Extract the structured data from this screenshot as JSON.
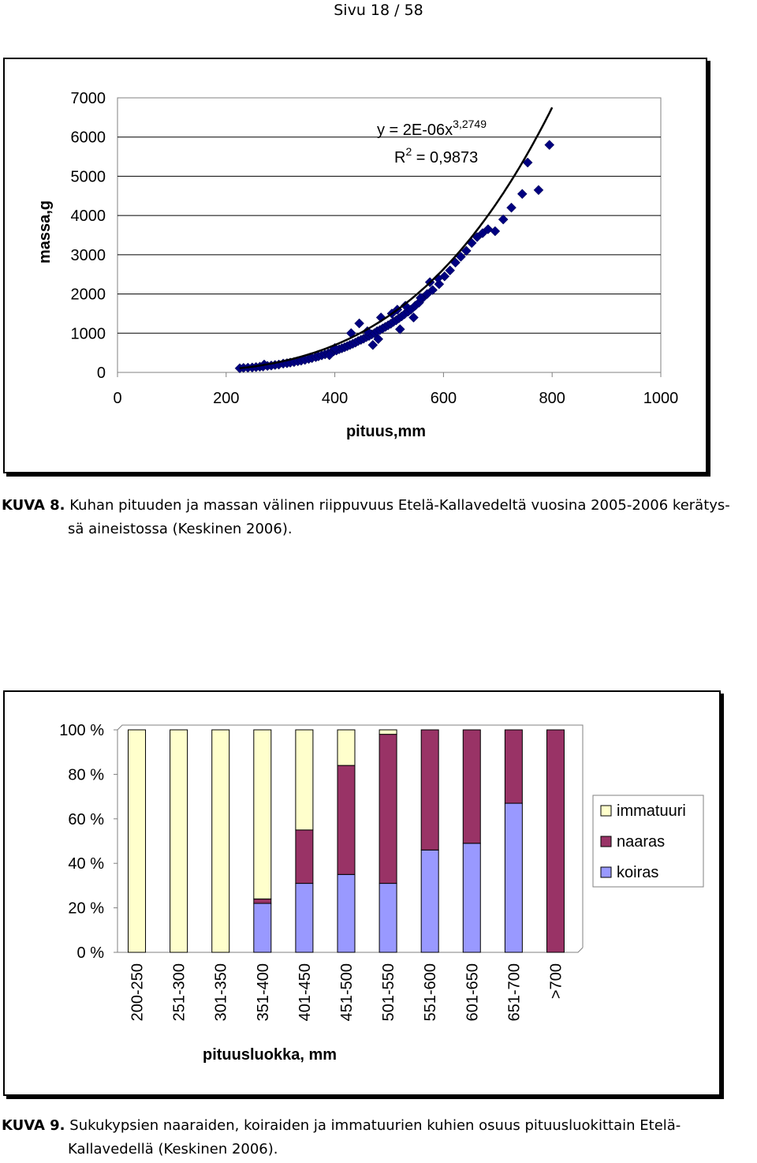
{
  "header": {
    "text": "Sivu 18 / 58"
  },
  "figure1": {
    "label": "KUVA 8.",
    "caption_line1": "Kuhan pituuden ja massan välinen riippuvuus Etelä-Kallavedeltä vuosina 2005-2006 kerätys-",
    "caption_line2": "sä aineistossa (Keskinen 2006)."
  },
  "figure2": {
    "label": "KUVA 9.",
    "caption_line1": "Sukukypsien naaraiden, koiraiden ja immatuurien kuhien osuus pituusluokittain Etelä-",
    "caption_line2": "Kallavedellä (Keskinen 2006)."
  },
  "chart_data": [
    {
      "type": "scatter",
      "xlabel": "pituus,mm",
      "ylabel": "massa,g",
      "xlim": [
        0,
        1000
      ],
      "ylim": [
        0,
        7000
      ],
      "xticks": [
        0,
        200,
        400,
        600,
        800,
        1000
      ],
      "yticks": [
        0,
        1000,
        2000,
        3000,
        4000,
        5000,
        6000,
        7000
      ],
      "gridlines": "horizontal",
      "marker_color": "#000080",
      "trendline": {
        "equation": "y = 2E-06x",
        "exponent": "3,2749",
        "r2_label": "R",
        "r2_sup": "2",
        "r2_value": " = 0,9873",
        "a": 2.1e-06,
        "b": 3.2749,
        "x_range": [
          225,
          800
        ]
      },
      "points": [
        [
          225,
          105
        ],
        [
          232,
          115
        ],
        [
          240,
          120
        ],
        [
          248,
          125
        ],
        [
          255,
          135
        ],
        [
          262,
          145
        ],
        [
          270,
          200
        ],
        [
          268,
          150
        ],
        [
          276,
          165
        ],
        [
          283,
          175
        ],
        [
          290,
          190
        ],
        [
          297,
          200
        ],
        [
          305,
          225
        ],
        [
          312,
          235
        ],
        [
          318,
          250
        ],
        [
          325,
          265
        ],
        [
          332,
          285
        ],
        [
          338,
          300
        ],
        [
          345,
          320
        ],
        [
          352,
          345
        ],
        [
          358,
          365
        ],
        [
          365,
          390
        ],
        [
          370,
          410
        ],
        [
          376,
          435
        ],
        [
          382,
          460
        ],
        [
          388,
          485
        ],
        [
          393,
          510
        ],
        [
          398,
          540
        ],
        [
          403,
          560
        ],
        [
          408,
          590
        ],
        [
          413,
          615
        ],
        [
          418,
          640
        ],
        [
          423,
          670
        ],
        [
          428,
          700
        ],
        [
          433,
          730
        ],
        [
          438,
          760
        ],
        [
          443,
          800
        ],
        [
          448,
          830
        ],
        [
          453,
          860
        ],
        [
          458,
          900
        ],
        [
          463,
          930
        ],
        [
          468,
          970
        ],
        [
          473,
          1000
        ],
        [
          478,
          1050
        ],
        [
          483,
          1080
        ],
        [
          488,
          1120
        ],
        [
          493,
          1160
        ],
        [
          498,
          1200
        ],
        [
          503,
          1240
        ],
        [
          508,
          1290
        ],
        [
          513,
          1330
        ],
        [
          518,
          1380
        ],
        [
          523,
          1430
        ],
        [
          528,
          1480
        ],
        [
          535,
          1550
        ],
        [
          540,
          1600
        ],
        [
          548,
          1700
        ],
        [
          555,
          1780
        ],
        [
          562,
          1900
        ],
        [
          570,
          2000
        ],
        [
          580,
          2100
        ],
        [
          592,
          2250
        ],
        [
          602,
          2450
        ],
        [
          612,
          2600
        ],
        [
          622,
          2800
        ],
        [
          632,
          2950
        ],
        [
          642,
          3100
        ],
        [
          652,
          3300
        ],
        [
          662,
          3450
        ],
        [
          672,
          3550
        ],
        [
          682,
          3650
        ],
        [
          695,
          3600
        ],
        [
          710,
          3900
        ],
        [
          725,
          4200
        ],
        [
          745,
          4550
        ],
        [
          755,
          5350
        ],
        [
          775,
          4650
        ],
        [
          795,
          5800
        ],
        [
          430,
          1000
        ],
        [
          445,
          1250
        ],
        [
          470,
          700
        ],
        [
          485,
          1400
        ],
        [
          505,
          1500
        ],
        [
          515,
          1600
        ],
        [
          520,
          1100
        ],
        [
          530,
          1700
        ],
        [
          545,
          1400
        ],
        [
          558,
          1900
        ],
        [
          575,
          2300
        ],
        [
          590,
          2400
        ],
        [
          400,
          620
        ],
        [
          390,
          440
        ],
        [
          460,
          1050
        ],
        [
          480,
          850
        ]
      ]
    },
    {
      "type": "stacked-bar-100",
      "xlabel": "pituusluokka, mm",
      "ylabel": "",
      "ylim": [
        0,
        100
      ],
      "yticks": [
        "0 %",
        "20 %",
        "40 %",
        "60 %",
        "80 %",
        "100 %"
      ],
      "gridlines": "none",
      "legend_position": "right",
      "categories": [
        "200-250",
        "251-300",
        "301-350",
        "351-400",
        "401-450",
        "451-500",
        "501-550",
        "551-600",
        "601-650",
        "651-700",
        ">700"
      ],
      "series": [
        {
          "name": "koiras",
          "color": "#9999FF",
          "values": [
            0,
            0,
            0,
            22,
            31,
            35,
            31,
            46,
            49,
            67,
            0
          ]
        },
        {
          "name": "naaras",
          "color": "#993366",
          "values": [
            0,
            0,
            0,
            2,
            24,
            49,
            67,
            54,
            51,
            33,
            100
          ]
        },
        {
          "name": "immatuuri",
          "color": "#FFFFCC",
          "values": [
            100,
            100,
            100,
            76,
            45,
            16,
            2,
            0,
            0,
            0,
            0
          ]
        }
      ],
      "legend_order": [
        "immatuuri",
        "naaras",
        "koiras"
      ]
    }
  ]
}
